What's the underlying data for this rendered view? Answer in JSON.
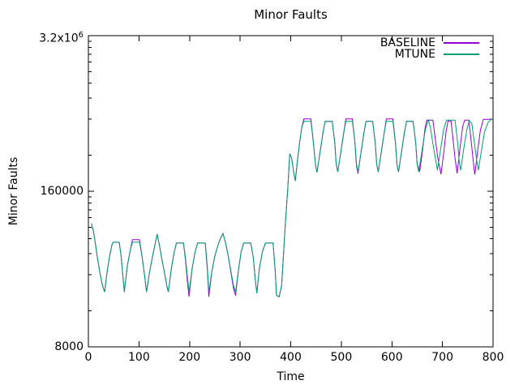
{
  "chart_data": {
    "type": "line",
    "title": "Minor Faults",
    "xlabel": "Time",
    "ylabel": "Minor Faults",
    "xlim": [
      0,
      800
    ],
    "ylim": [
      8000,
      3200000
    ],
    "y_scale": "log",
    "x_ticks": [
      0,
      100,
      200,
      300,
      400,
      500,
      600,
      700,
      800
    ],
    "y_ticks": [
      {
        "value": 8000,
        "label": "8000"
      },
      {
        "value": 160000,
        "label": "160000"
      },
      {
        "value": 3200000,
        "label": "3.2x10^6"
      }
    ],
    "grid": false,
    "axis_color": "#000000",
    "text_color": "#000000",
    "legend": {
      "position": "top-right-inside"
    },
    "series": [
      {
        "name": "BASELINE",
        "color": "#9400d3",
        "points": [
          [
            6,
            86000
          ],
          [
            10,
            74000
          ],
          [
            14,
            58000
          ],
          [
            18,
            44000
          ],
          [
            23,
            33000
          ],
          [
            28,
            26000
          ],
          [
            32,
            23000
          ],
          [
            37,
            34000
          ],
          [
            42,
            46000
          ],
          [
            47,
            58000
          ],
          [
            49,
            60000
          ],
          [
            61,
            60000
          ],
          [
            65,
            45000
          ],
          [
            68,
            32000
          ],
          [
            71,
            23000
          ],
          [
            77,
            38000
          ],
          [
            83,
            52000
          ],
          [
            87,
            63000
          ],
          [
            101,
            63000
          ],
          [
            106,
            46000
          ],
          [
            111,
            32000
          ],
          [
            115,
            23000
          ],
          [
            121,
            34000
          ],
          [
            127,
            46000
          ],
          [
            132,
            58000
          ],
          [
            136,
            70000
          ],
          [
            140,
            58000
          ],
          [
            145,
            44000
          ],
          [
            150,
            34000
          ],
          [
            155,
            26000
          ],
          [
            158,
            23000
          ],
          [
            164,
            36000
          ],
          [
            169,
            48000
          ],
          [
            174,
            59000
          ],
          [
            188,
            59000
          ],
          [
            192,
            42000
          ],
          [
            196,
            27000
          ],
          [
            199,
            21000
          ],
          [
            205,
            36000
          ],
          [
            211,
            50000
          ],
          [
            216,
            59000
          ],
          [
            231,
            59000
          ],
          [
            235,
            36000
          ],
          [
            238,
            21000
          ],
          [
            244,
            34000
          ],
          [
            250,
            46000
          ],
          [
            257,
            58000
          ],
          [
            262,
            66000
          ],
          [
            266,
            71000
          ],
          [
            271,
            60000
          ],
          [
            276,
            47000
          ],
          [
            282,
            33000
          ],
          [
            287,
            24500
          ],
          [
            291,
            21500
          ],
          [
            297,
            36000
          ],
          [
            302,
            50000
          ],
          [
            307,
            59000
          ],
          [
            321,
            59000
          ],
          [
            326,
            45000
          ],
          [
            330,
            29000
          ],
          [
            333,
            22500
          ],
          [
            338,
            36000
          ],
          [
            344,
            50000
          ],
          [
            350,
            59000
          ],
          [
            365,
            59000
          ],
          [
            369,
            36000
          ],
          [
            372,
            21500
          ],
          [
            377,
            21000
          ],
          [
            382,
            26000
          ],
          [
            386,
            50000
          ],
          [
            390,
            95000
          ],
          [
            394,
            165000
          ],
          [
            398,
            330000
          ],
          [
            402,
            300000
          ],
          [
            406,
            230000
          ],
          [
            409,
            195000
          ],
          [
            413,
            280000
          ],
          [
            418,
            420000
          ],
          [
            422,
            550000
          ],
          [
            426,
            645000
          ],
          [
            440,
            645000
          ],
          [
            445,
            400000
          ],
          [
            449,
            265000
          ],
          [
            452,
            230000
          ],
          [
            458,
            340000
          ],
          [
            464,
            500000
          ],
          [
            468,
            615000
          ],
          [
            482,
            615000
          ],
          [
            487,
            410000
          ],
          [
            490,
            270000
          ],
          [
            493,
            232000
          ],
          [
            499,
            340000
          ],
          [
            505,
            500000
          ],
          [
            509,
            645000
          ],
          [
            522,
            645000
          ],
          [
            527,
            400000
          ],
          [
            530,
            260000
          ],
          [
            533,
            225000
          ],
          [
            539,
            340000
          ],
          [
            545,
            500000
          ],
          [
            549,
            615000
          ],
          [
            562,
            615000
          ],
          [
            567,
            410000
          ],
          [
            570,
            270000
          ],
          [
            573,
            232000
          ],
          [
            579,
            340000
          ],
          [
            585,
            500000
          ],
          [
            589,
            645000
          ],
          [
            602,
            645000
          ],
          [
            607,
            410000
          ],
          [
            610,
            270000
          ],
          [
            613,
            232000
          ],
          [
            619,
            340000
          ],
          [
            625,
            500000
          ],
          [
            629,
            615000
          ],
          [
            642,
            615000
          ],
          [
            647,
            410000
          ],
          [
            650,
            270000
          ],
          [
            655,
            235000
          ],
          [
            661,
            360000
          ],
          [
            665,
            520000
          ],
          [
            669,
            630000
          ],
          [
            681,
            630000
          ],
          [
            686,
            430000
          ],
          [
            691,
            300000
          ],
          [
            697,
            222000
          ],
          [
            703,
            350000
          ],
          [
            707,
            500000
          ],
          [
            711,
            620000
          ],
          [
            717,
            620000
          ],
          [
            721,
            430000
          ],
          [
            725,
            300000
          ],
          [
            729,
            226000
          ],
          [
            735,
            380000
          ],
          [
            740,
            560000
          ],
          [
            744,
            630000
          ],
          [
            752,
            630000
          ],
          [
            757,
            410000
          ],
          [
            761,
            280000
          ],
          [
            764,
            220000
          ],
          [
            770,
            360000
          ],
          [
            775,
            520000
          ],
          [
            781,
            640000
          ],
          [
            800,
            640000
          ]
        ]
      },
      {
        "name": "MTUNE",
        "color": "#009e73",
        "points": [
          [
            6,
            86000
          ],
          [
            10,
            74000
          ],
          [
            14,
            58000
          ],
          [
            18,
            44000
          ],
          [
            23,
            33000
          ],
          [
            28,
            26000
          ],
          [
            32,
            23000
          ],
          [
            37,
            34000
          ],
          [
            42,
            46000
          ],
          [
            47,
            58000
          ],
          [
            49,
            60000
          ],
          [
            61,
            60000
          ],
          [
            65,
            45000
          ],
          [
            68,
            32000
          ],
          [
            71,
            23000
          ],
          [
            77,
            38000
          ],
          [
            83,
            52000
          ],
          [
            87,
            60000
          ],
          [
            101,
            60000
          ],
          [
            106,
            46000
          ],
          [
            111,
            32000
          ],
          [
            115,
            23000
          ],
          [
            121,
            34000
          ],
          [
            127,
            46000
          ],
          [
            132,
            58000
          ],
          [
            136,
            70000
          ],
          [
            140,
            58000
          ],
          [
            145,
            44000
          ],
          [
            150,
            34000
          ],
          [
            155,
            26000
          ],
          [
            158,
            23000
          ],
          [
            164,
            36000
          ],
          [
            169,
            48000
          ],
          [
            174,
            59000
          ],
          [
            188,
            59000
          ],
          [
            192,
            44000
          ],
          [
            196,
            30000
          ],
          [
            199,
            23000
          ],
          [
            205,
            36000
          ],
          [
            211,
            50000
          ],
          [
            216,
            59000
          ],
          [
            231,
            59000
          ],
          [
            235,
            38000
          ],
          [
            238,
            23000
          ],
          [
            244,
            34000
          ],
          [
            250,
            46000
          ],
          [
            257,
            58000
          ],
          [
            262,
            66000
          ],
          [
            266,
            71000
          ],
          [
            271,
            60000
          ],
          [
            276,
            47000
          ],
          [
            282,
            34000
          ],
          [
            287,
            26000
          ],
          [
            291,
            23000
          ],
          [
            297,
            36000
          ],
          [
            302,
            50000
          ],
          [
            307,
            59000
          ],
          [
            321,
            59000
          ],
          [
            326,
            45000
          ],
          [
            330,
            29000
          ],
          [
            333,
            22500
          ],
          [
            338,
            36000
          ],
          [
            344,
            50000
          ],
          [
            350,
            59000
          ],
          [
            365,
            59000
          ],
          [
            369,
            36000
          ],
          [
            372,
            21500
          ],
          [
            377,
            21000
          ],
          [
            382,
            26000
          ],
          [
            386,
            50000
          ],
          [
            390,
            95000
          ],
          [
            394,
            165000
          ],
          [
            398,
            330000
          ],
          [
            402,
            300000
          ],
          [
            406,
            230000
          ],
          [
            409,
            195000
          ],
          [
            413,
            280000
          ],
          [
            418,
            420000
          ],
          [
            422,
            550000
          ],
          [
            426,
            615000
          ],
          [
            440,
            615000
          ],
          [
            445,
            400000
          ],
          [
            449,
            265000
          ],
          [
            452,
            230000
          ],
          [
            458,
            340000
          ],
          [
            464,
            500000
          ],
          [
            468,
            615000
          ],
          [
            482,
            615000
          ],
          [
            487,
            410000
          ],
          [
            490,
            270000
          ],
          [
            493,
            232000
          ],
          [
            499,
            340000
          ],
          [
            505,
            500000
          ],
          [
            509,
            615000
          ],
          [
            522,
            615000
          ],
          [
            527,
            410000
          ],
          [
            530,
            270000
          ],
          [
            533,
            232000
          ],
          [
            539,
            340000
          ],
          [
            545,
            500000
          ],
          [
            549,
            615000
          ],
          [
            562,
            615000
          ],
          [
            567,
            410000
          ],
          [
            570,
            270000
          ],
          [
            573,
            232000
          ],
          [
            579,
            340000
          ],
          [
            585,
            500000
          ],
          [
            589,
            615000
          ],
          [
            602,
            615000
          ],
          [
            607,
            410000
          ],
          [
            610,
            270000
          ],
          [
            613,
            232000
          ],
          [
            619,
            340000
          ],
          [
            625,
            500000
          ],
          [
            629,
            615000
          ],
          [
            642,
            615000
          ],
          [
            647,
            410000
          ],
          [
            650,
            270000
          ],
          [
            653,
            232000
          ],
          [
            660,
            360000
          ],
          [
            666,
            520000
          ],
          [
            672,
            630000
          ],
          [
            676,
            550000
          ],
          [
            681,
            400000
          ],
          [
            686,
            300000
          ],
          [
            690,
            240000
          ],
          [
            696,
            350000
          ],
          [
            702,
            520000
          ],
          [
            708,
            630000
          ],
          [
            725,
            630000
          ],
          [
            730,
            410000
          ],
          [
            733,
            285000
          ],
          [
            736,
            240000
          ],
          [
            742,
            360000
          ],
          [
            748,
            520000
          ],
          [
            753,
            625000
          ],
          [
            758,
            590000
          ],
          [
            763,
            410000
          ],
          [
            768,
            285000
          ],
          [
            771,
            240000
          ],
          [
            777,
            350000
          ],
          [
            783,
            500000
          ],
          [
            790,
            600000
          ],
          [
            796,
            638000
          ],
          [
            800,
            638000
          ]
        ]
      }
    ]
  }
}
